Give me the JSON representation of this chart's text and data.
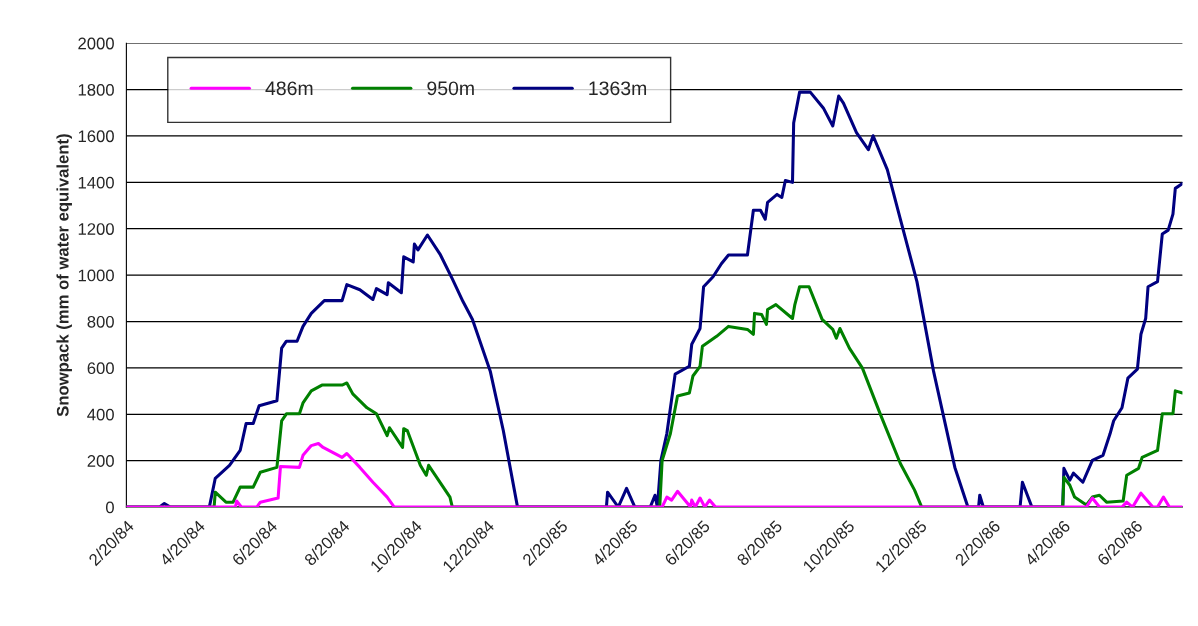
{
  "chart_data": {
    "type": "line",
    "ylabel": "Snowpack (mm of water equivalent)",
    "xlim": [
      "1984-02-20",
      "1986-07-30"
    ],
    "ylim": [
      0,
      2000
    ],
    "yticks": [
      0,
      200,
      400,
      600,
      800,
      1000,
      1200,
      1400,
      1600,
      1800,
      2000
    ],
    "xticks": [
      {
        "value": "1984-02-20",
        "label": "2/20/84"
      },
      {
        "value": "1984-04-20",
        "label": "4/20/84"
      },
      {
        "value": "1984-06-20",
        "label": "6/20/84"
      },
      {
        "value": "1984-08-20",
        "label": "8/20/84"
      },
      {
        "value": "1984-10-20",
        "label": "10/20/84"
      },
      {
        "value": "1984-12-20",
        "label": "12/20/84"
      },
      {
        "value": "1985-02-20",
        "label": "2/20/85"
      },
      {
        "value": "1985-04-20",
        "label": "4/20/85"
      },
      {
        "value": "1985-06-20",
        "label": "6/20/85"
      },
      {
        "value": "1985-08-20",
        "label": "8/20/85"
      },
      {
        "value": "1985-10-20",
        "label": "10/20/85"
      },
      {
        "value": "1985-12-20",
        "label": "12/20/85"
      },
      {
        "value": "1986-02-20",
        "label": "2/20/86"
      },
      {
        "value": "1986-04-20",
        "label": "4/20/86"
      },
      {
        "value": "1986-06-20",
        "label": "6/20/86"
      }
    ],
    "grid": "y",
    "legend": "top left",
    "line_style": "solid",
    "series": [
      {
        "name": "486m",
        "color": "#ff00ff",
        "x": [
          "1984-02-20",
          "1984-05-22",
          "1984-05-23",
          "1984-05-27",
          "1984-06-09",
          "1984-06-12",
          "1984-06-27",
          "1984-06-29",
          "1984-07-15",
          "1984-07-18",
          "1984-07-25",
          "1984-07-31",
          "1984-08-04",
          "1984-08-20",
          "1984-08-24",
          "1984-09-04",
          "1984-09-15",
          "1984-09-27",
          "1984-10-03",
          "1985-05-17",
          "1985-05-21",
          "1985-05-25",
          "1985-05-30",
          "1985-06-10",
          "1985-06-11",
          "1985-06-14",
          "1985-06-18",
          "1985-06-22",
          "1985-06-26",
          "1985-07-01",
          "1986-05-10",
          "1986-05-15",
          "1986-05-21",
          "1986-06-09",
          "1986-06-13",
          "1986-06-18",
          "1986-06-25",
          "1986-07-05",
          "1986-07-09",
          "1986-07-14",
          "1986-07-19",
          "1986-07-30"
        ],
        "values": [
          0,
          0,
          26,
          0,
          0,
          21,
          39,
          175,
          171,
          223,
          265,
          274,
          257,
          214,
          231,
          171,
          107,
          43,
          0,
          0,
          43,
          30,
          68,
          0,
          30,
          0,
          39,
          0,
          30,
          0,
          0,
          39,
          0,
          0,
          21,
          0,
          60,
          0,
          0,
          43,
          0,
          0
        ]
      },
      {
        "name": "950m",
        "color": "#008000",
        "x": [
          "1984-02-20",
          "1984-05-04",
          "1984-05-05",
          "1984-05-14",
          "1984-05-20",
          "1984-05-26",
          "1984-06-06",
          "1984-06-12",
          "1984-06-26",
          "1984-06-30",
          "1984-07-04",
          "1984-07-15",
          "1984-07-18",
          "1984-07-25",
          "1984-08-03",
          "1984-08-20",
          "1984-08-24",
          "1984-08-29",
          "1984-09-10",
          "1984-09-18",
          "1984-09-27",
          "1984-09-29",
          "1984-10-10",
          "1984-10-11",
          "1984-10-14",
          "1984-10-25",
          "1984-10-30",
          "1984-11-01",
          "1984-11-19",
          "1984-11-21",
          "1985-05-15",
          "1985-05-17",
          "1985-05-24",
          "1985-05-30",
          "1985-06-09",
          "1985-06-12",
          "1985-06-18",
          "1985-06-20",
          "1985-07-02",
          "1985-07-12",
          "1985-07-28",
          "1985-08-02",
          "1985-08-03",
          "1985-08-09",
          "1985-08-13",
          "1985-08-14",
          "1985-08-21",
          "1985-09-04",
          "1985-09-06",
          "1985-09-10",
          "1985-09-18",
          "1985-09-29",
          "1985-10-08",
          "1985-10-11",
          "1985-10-14",
          "1985-10-22",
          "1985-11-02",
          "1985-11-17",
          "1985-12-04",
          "1985-12-16",
          "1985-12-22",
          "1986-04-20",
          "1986-04-21",
          "1986-04-26",
          "1986-04-30",
          "1986-05-10",
          "1986-05-15",
          "1986-05-21",
          "1986-05-27",
          "1986-06-10",
          "1986-06-13",
          "1986-06-23",
          "1986-06-26",
          "1986-07-09",
          "1986-07-13",
          "1986-07-22",
          "1986-07-24",
          "1986-07-30"
        ],
        "values": [
          0,
          0,
          64,
          21,
          21,
          86,
          86,
          150,
          171,
          372,
          402,
          402,
          449,
          501,
          526,
          526,
          535,
          488,
          428,
          402,
          308,
          342,
          257,
          338,
          330,
          180,
          137,
          180,
          43,
          0,
          0,
          201,
          317,
          479,
          492,
          565,
          607,
          693,
          736,
          779,
          766,
          745,
          835,
          830,
          788,
          852,
          873,
          813,
          873,
          950,
          950,
          809,
          766,
          728,
          770,
          685,
          599,
          402,
          188,
          73,
          0,
          0,
          128,
          94,
          43,
          9,
          43,
          51,
          21,
          26,
          137,
          167,
          214,
          244,
          402,
          402,
          501,
          492
        ]
      },
      {
        "name": "1363m",
        "color": "#000080",
        "x": [
          "1984-02-20",
          "1984-03-19",
          "1984-03-23",
          "1984-03-28",
          "1984-04-30",
          "1984-05-05",
          "1984-05-17",
          "1984-05-26",
          "1984-05-31",
          "1984-06-06",
          "1984-06-11",
          "1984-06-26",
          "1984-06-30",
          "1984-07-04",
          "1984-07-13",
          "1984-07-18",
          "1984-07-25",
          "1984-08-05",
          "1984-08-20",
          "1984-08-24",
          "1984-09-04",
          "1984-09-15",
          "1984-09-18",
          "1984-09-27",
          "1984-09-28",
          "1984-10-09",
          "1984-10-11",
          "1984-10-19",
          "1984-10-20",
          "1984-10-23",
          "1984-10-31",
          "1984-11-11",
          "1984-11-21",
          "1984-11-30",
          "1984-12-08",
          "1984-12-23",
          "1985-01-03",
          "1985-01-15",
          "1985-03-31",
          "1985-04-01",
          "1985-04-10",
          "1985-04-17",
          "1985-04-24",
          "1985-05-07",
          "1985-05-11",
          "1985-05-13",
          "1985-05-16",
          "1985-05-21",
          "1985-05-28",
          "1985-06-09",
          "1985-06-11",
          "1985-06-18",
          "1985-06-21",
          "1985-06-29",
          "1985-07-06",
          "1985-07-12",
          "1985-07-28",
          "1985-08-02",
          "1985-08-08",
          "1985-08-12",
          "1985-08-14",
          "1985-08-22",
          "1985-08-26",
          "1985-08-29",
          "1985-09-04",
          "1985-09-05",
          "1985-09-10",
          "1985-09-19",
          "1985-09-30",
          "1985-10-08",
          "1985-10-13",
          "1985-10-17",
          "1985-10-28",
          "1985-11-07",
          "1985-11-11",
          "1985-11-23",
          "1985-12-04",
          "1985-12-18",
          "1986-01-01",
          "1986-01-09",
          "1986-01-19",
          "1986-01-30",
          "1986-02-08",
          "1986-02-09",
          "1986-02-12",
          "1986-03-15",
          "1986-03-17",
          "1986-03-25",
          "1986-04-20",
          "1986-04-21",
          "1986-04-26",
          "1986-04-29",
          "1986-05-07",
          "1986-05-15",
          "1986-05-24",
          "1986-05-30",
          "1986-06-02",
          "1986-06-09",
          "1986-06-14",
          "1986-06-22",
          "1986-06-25",
          "1986-06-29",
          "1986-07-01",
          "1986-07-09",
          "1986-07-13",
          "1986-07-18",
          "1986-07-22",
          "1986-07-24",
          "1986-07-30"
        ],
        "values": [
          0,
          0,
          15,
          0,
          0,
          124,
          180,
          244,
          360,
          360,
          437,
          458,
          685,
          715,
          715,
          779,
          835,
          890,
          890,
          959,
          937,
          895,
          942,
          916,
          967,
          924,
          1079,
          1057,
          1134,
          1109,
          1173,
          1087,
          984,
          886,
          809,
          586,
          330,
          0,
          0,
          64,
          0,
          81,
          0,
          0,
          51,
          0,
          201,
          317,
          573,
          607,
          702,
          770,
          950,
          993,
          1049,
          1087,
          1087,
          1280,
          1280,
          1241,
          1314,
          1348,
          1335,
          1408,
          1400,
          1656,
          1789,
          1789,
          1721,
          1643,
          1772,
          1742,
          1614,
          1541,
          1601,
          1455,
          1241,
          972,
          586,
          402,
          171,
          0,
          0,
          51,
          0,
          0,
          107,
          0,
          0,
          167,
          116,
          146,
          107,
          201,
          223,
          317,
          372,
          428,
          556,
          595,
          745,
          813,
          950,
          972,
          1177,
          1194,
          1263,
          1374,
          1395
        ]
      }
    ]
  }
}
